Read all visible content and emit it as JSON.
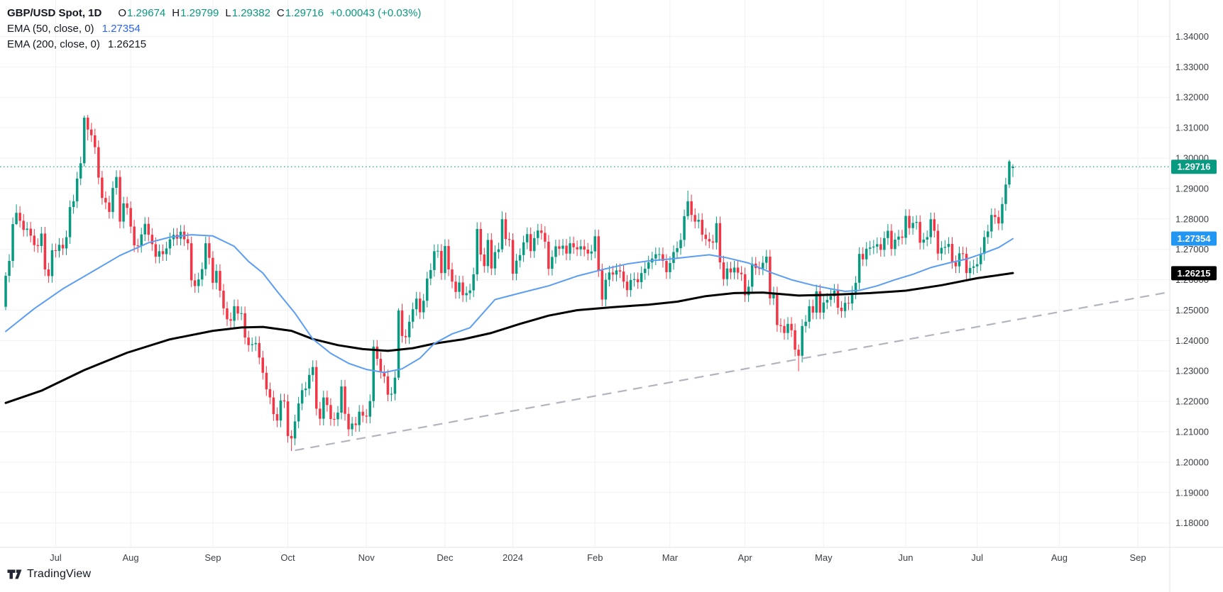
{
  "chart": {
    "symbol_title": "GBP/USD Spot, 1D",
    "ohlc": {
      "o_label": "O",
      "o": "1.29674",
      "h_label": "H",
      "h": "1.29799",
      "l_label": "L",
      "l": "1.29382",
      "c_label": "C",
      "c": "1.29716",
      "change": "+0.00043 (+0.03%)"
    },
    "indicators": [
      {
        "label": "EMA (50, close, 0)",
        "value": "1.27354"
      },
      {
        "label": "EMA (200, close, 0)",
        "value": "1.26215"
      }
    ]
  },
  "branding": {
    "logo_text": "TradingView"
  },
  "colors": {
    "background": "#FFFFFF",
    "up": "#089981",
    "down": "#F23645",
    "ema50_line": "#5B9DF3",
    "ema50_value": "#2962FF",
    "ema50_label_bg": "#2196F3",
    "ema200_line": "#000000",
    "ema200_value": "#131722",
    "ohlc_value": "#089981",
    "current_price_bg": "#089981",
    "current_price_line": "#089981",
    "trendline": "#B2B5BE",
    "grid": "#F0F1F3",
    "axis_border": "#E0E3EB",
    "axis_text": "#3C4049",
    "tag_text": "#FFFFFF",
    "legend_text": "#131722"
  },
  "chart_data": {
    "type": "candlestick",
    "title": "GBP/USD Spot, 1D",
    "symbol": "GBP/USD Spot",
    "timeframe": "1D",
    "legend_note": "candles start mid-June 2023 and end 15 July 2024",
    "y_axis": {
      "min": 1.172,
      "max": 1.352,
      "ticks": [
        1.18,
        1.19,
        1.2,
        1.21,
        1.22,
        1.23,
        1.24,
        1.25,
        1.26,
        1.27,
        1.28,
        1.29,
        1.3,
        1.31,
        1.32,
        1.33,
        1.34
      ],
      "tick_format_decimals": 5
    },
    "x_axis": {
      "months": [
        {
          "label": "Jul",
          "idx": 14
        },
        {
          "label": "Aug",
          "idx": 35
        },
        {
          "label": "Sep",
          "idx": 58
        },
        {
          "label": "Oct",
          "idx": 79
        },
        {
          "label": "Nov",
          "idx": 101
        },
        {
          "label": "Dec",
          "idx": 123
        },
        {
          "label": "2024",
          "idx": 142
        },
        {
          "label": "Feb",
          "idx": 165
        },
        {
          "label": "Mar",
          "idx": 186
        },
        {
          "label": "Apr",
          "idx": 207
        },
        {
          "label": "May",
          "idx": 229
        },
        {
          "label": "Jun",
          "idx": 252
        },
        {
          "label": "Jul",
          "idx": 272
        },
        {
          "label": "Aug",
          "idx": 295
        },
        {
          "label": "Sep",
          "idx": 317
        }
      ]
    },
    "last_bar": {
      "open": 1.29674,
      "high": 1.29799,
      "low": 1.29382,
      "close": 1.29716,
      "change": 0.00043,
      "change_pct": 0.03
    },
    "current_price": 1.29716,
    "ohlc_note": "open = prior close; high/low = body extremes +/- default_wick unless listed in overrides",
    "first_open": 1.2511,
    "default_wick": 0.0022,
    "closes": [
      1.2613,
      1.2662,
      1.2783,
      1.282,
      1.2794,
      1.2764,
      1.2768,
      1.2745,
      1.2714,
      1.2711,
      1.2752,
      1.2634,
      1.2612,
      1.2697,
      1.2695,
      1.2715,
      1.2703,
      1.274,
      1.2839,
      1.2858,
      1.2933,
      1.2983,
      1.3133,
      1.3094,
      1.3075,
      1.3036,
      1.2936,
      1.2869,
      1.2854,
      1.2823,
      1.2902,
      1.2938,
      1.2791,
      1.2851,
      1.2836,
      1.2775,
      1.2713,
      1.2711,
      1.2749,
      1.2784,
      1.2748,
      1.2717,
      1.2676,
      1.2694,
      1.2684,
      1.2703,
      1.2733,
      1.2748,
      1.2735,
      1.2758,
      1.2733,
      1.272,
      1.2598,
      1.2579,
      1.2601,
      1.2635,
      1.272,
      1.2672,
      1.259,
      1.2629,
      1.2564,
      1.2506,
      1.247,
      1.2465,
      1.2513,
      1.2489,
      1.249,
      1.241,
      1.2385,
      1.2388,
      1.2392,
      1.2344,
      1.2294,
      1.224,
      1.2213,
      1.2158,
      1.2137,
      1.2203,
      1.22,
      1.2086,
      1.2078,
      1.2134,
      1.2193,
      1.2237,
      1.2242,
      1.2287,
      1.2313,
      1.2176,
      1.2143,
      1.2213,
      1.2188,
      1.2142,
      1.2141,
      1.2163,
      1.2249,
      1.2159,
      1.2108,
      1.2127,
      1.2122,
      1.2166,
      1.2153,
      1.215,
      1.2201,
      1.238,
      1.234,
      1.2297,
      1.2282,
      1.2222,
      1.2225,
      1.2278,
      1.2499,
      1.2415,
      1.2411,
      1.2462,
      1.2503,
      1.2538,
      1.2493,
      1.2531,
      1.2604,
      1.2632,
      1.2694,
      1.2695,
      1.2622,
      1.2711,
      1.2634,
      1.2594,
      1.256,
      1.2591,
      1.2549,
      1.2556,
      1.2565,
      1.2618,
      1.2767,
      1.2683,
      1.2645,
      1.2731,
      1.2637,
      1.2691,
      1.27,
      1.2799,
      1.2734,
      1.2731,
      1.262,
      1.2663,
      1.2681,
      1.2723,
      1.275,
      1.2694,
      1.2737,
      1.2762,
      1.2754,
      1.2725,
      1.2636,
      1.2675,
      1.271,
      1.2702,
      1.2712,
      1.2686,
      1.272,
      1.2707,
      1.27,
      1.271,
      1.2699,
      1.2686,
      1.2693,
      1.2743,
      1.2631,
      1.2535,
      1.26,
      1.2624,
      1.2617,
      1.2631,
      1.2627,
      1.2594,
      1.2566,
      1.2599,
      1.2602,
      1.2592,
      1.2622,
      1.2636,
      1.2657,
      1.267,
      1.2684,
      1.2684,
      1.2662,
      1.2625,
      1.2655,
      1.2691,
      1.2704,
      1.2731,
      1.2809,
      1.2858,
      1.2813,
      1.2791,
      1.2797,
      1.2748,
      1.2734,
      1.2726,
      1.2722,
      1.2786,
      1.2657,
      1.2602,
      1.2637,
      1.2624,
      1.264,
      1.2623,
      1.2618,
      1.2549,
      1.2577,
      1.2653,
      1.2638,
      1.2637,
      1.2656,
      1.2676,
      1.2539,
      1.2555,
      1.2451,
      1.2448,
      1.2425,
      1.2455,
      1.2434,
      1.237,
      1.235,
      1.2448,
      1.2462,
      1.2513,
      1.2492,
      1.2562,
      1.2492,
      1.2525,
      1.2534,
      1.2546,
      1.2564,
      1.2508,
      1.2497,
      1.2524,
      1.2522,
      1.2558,
      1.259,
      1.2685,
      1.2667,
      1.2702,
      1.2706,
      1.2709,
      1.2717,
      1.2698,
      1.2737,
      1.2761,
      1.2701,
      1.2732,
      1.2742,
      1.2738,
      1.281,
      1.277,
      1.2787,
      1.279,
      1.2722,
      1.2732,
      1.274,
      1.2799,
      1.2761,
      1.2686,
      1.2705,
      1.2708,
      1.2718,
      1.2658,
      1.2644,
      1.2687,
      1.2685,
      1.2622,
      1.2639,
      1.2644,
      1.2651,
      1.2685,
      1.274,
      1.2759,
      1.2813,
      1.2806,
      1.2785,
      1.2849,
      1.2913,
      1.2989,
      1.2972
    ],
    "overrides": {
      "0": [
        1.2511,
        1.2625,
        1.25,
        1.2613
      ],
      "3": [
        1.2783,
        1.2848,
        1.278,
        1.282
      ],
      "22": [
        1.2983,
        1.314,
        1.2972,
        1.3133
      ],
      "23": [
        1.3133,
        1.3142,
        1.3058,
        1.3094
      ],
      "80": [
        1.2086,
        1.2105,
        1.2037,
        1.2078
      ],
      "110": [
        1.2278,
        1.2506,
        1.227,
        1.2499
      ],
      "139": [
        1.27,
        1.2825,
        1.269,
        1.2799
      ],
      "191": [
        1.2809,
        1.2893,
        1.2798,
        1.2858
      ],
      "222": [
        1.237,
        1.2387,
        1.2299,
        1.235
      ],
      "281": [
        1.2913,
        1.2995,
        1.2902,
        1.2989
      ],
      "282": [
        1.2967,
        1.298,
        1.2938,
        1.2972
      ]
    },
    "ema50": {
      "period": 50,
      "source": "close",
      "offset": 0,
      "last": 1.27354,
      "points": [
        [
          0,
          1.243
        ],
        [
          8,
          1.2505
        ],
        [
          16,
          1.257
        ],
        [
          24,
          1.2625
        ],
        [
          32,
          1.268
        ],
        [
          40,
          1.2722
        ],
        [
          46,
          1.274
        ],
        [
          52,
          1.2748
        ],
        [
          58,
          1.2744
        ],
        [
          64,
          1.271
        ],
        [
          68,
          1.266
        ],
        [
          72,
          1.2622
        ],
        [
          76,
          1.2562
        ],
        [
          81,
          1.249
        ],
        [
          86,
          1.2405
        ],
        [
          91,
          1.2358
        ],
        [
          96,
          1.2325
        ],
        [
          101,
          1.2305
        ],
        [
          106,
          1.2295
        ],
        [
          111,
          1.2307
        ],
        [
          116,
          1.2342
        ],
        [
          120,
          1.239
        ],
        [
          125,
          1.2422
        ],
        [
          130,
          1.2442
        ],
        [
          137,
          1.2535
        ],
        [
          144,
          1.2556
        ],
        [
          152,
          1.258
        ],
        [
          160,
          1.2612
        ],
        [
          168,
          1.2636
        ],
        [
          174,
          1.2652
        ],
        [
          180,
          1.2662
        ],
        [
          186,
          1.2668
        ],
        [
          192,
          1.2676
        ],
        [
          197,
          1.2682
        ],
        [
          202,
          1.2672
        ],
        [
          208,
          1.2655
        ],
        [
          214,
          1.2625
        ],
        [
          220,
          1.26
        ],
        [
          226,
          1.2582
        ],
        [
          231,
          1.257
        ],
        [
          235,
          1.2562
        ],
        [
          239,
          1.2565
        ],
        [
          244,
          1.258
        ],
        [
          249,
          1.26
        ],
        [
          254,
          1.2618
        ],
        [
          259,
          1.264
        ],
        [
          264,
          1.2655
        ],
        [
          269,
          1.2668
        ],
        [
          274,
          1.2688
        ],
        [
          278,
          1.2706
        ],
        [
          282,
          1.2735
        ]
      ]
    },
    "ema200": {
      "period": 200,
      "source": "close",
      "offset": 0,
      "last": 1.26215,
      "points": [
        [
          0,
          1.2195
        ],
        [
          10,
          1.2235
        ],
        [
          22,
          1.2303
        ],
        [
          34,
          1.236
        ],
        [
          46,
          1.2404
        ],
        [
          58,
          1.2432
        ],
        [
          66,
          1.2443
        ],
        [
          72,
          1.2445
        ],
        [
          80,
          1.2432
        ],
        [
          86,
          1.2405
        ],
        [
          93,
          1.2385
        ],
        [
          100,
          1.2372
        ],
        [
          107,
          1.2366
        ],
        [
          114,
          1.2375
        ],
        [
          120,
          1.239
        ],
        [
          128,
          1.2404
        ],
        [
          136,
          1.2425
        ],
        [
          144,
          1.2455
        ],
        [
          152,
          1.2482
        ],
        [
          160,
          1.25
        ],
        [
          170,
          1.251
        ],
        [
          180,
          1.2518
        ],
        [
          188,
          1.2528
        ],
        [
          196,
          1.2546
        ],
        [
          204,
          1.2556
        ],
        [
          212,
          1.2558
        ],
        [
          222,
          1.2548
        ],
        [
          232,
          1.2551
        ],
        [
          242,
          1.2556
        ],
        [
          252,
          1.2564
        ],
        [
          262,
          1.2582
        ],
        [
          272,
          1.2605
        ],
        [
          282,
          1.2622
        ]
      ]
    },
    "trendline": {
      "style": "dashed",
      "from": [
        81,
        1.2039
      ],
      "to": [
        326,
        1.256
      ]
    },
    "price_tags": [
      {
        "text": "1.29716",
        "price": 1.29716,
        "bg": "#089981"
      },
      {
        "text": "1.27354",
        "price": 1.27354,
        "bg": "#2196F3"
      },
      {
        "text": "1.26215",
        "price": 1.26215,
        "bg": "#000000"
      }
    ]
  }
}
